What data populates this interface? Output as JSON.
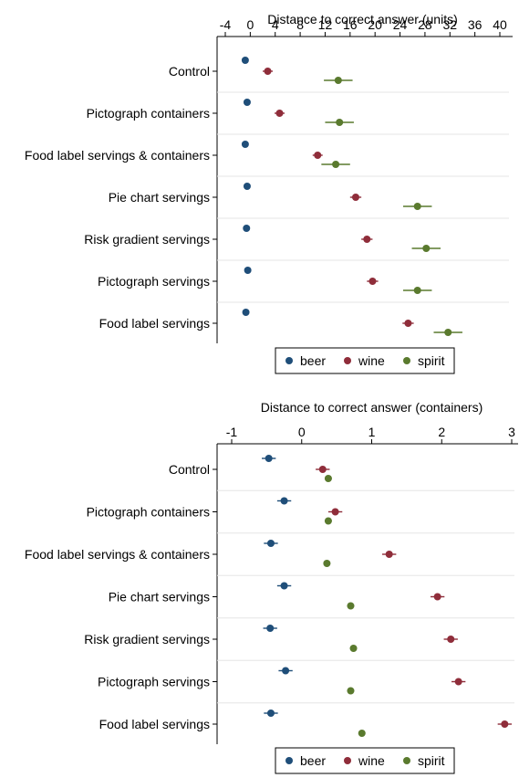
{
  "chart_data": [
    {
      "type": "scatter",
      "subtype": "dot-plot-with-error-bars",
      "xlabel": "Distance to correct answer (units)",
      "xlim": [
        -4,
        40
      ],
      "xticks": [
        -4,
        0,
        4,
        8,
        12,
        16,
        20,
        24,
        28,
        32,
        36,
        40
      ],
      "xtick_labels": [
        "-4",
        "0",
        "4",
        "8",
        "12",
        "16",
        "20",
        "24",
        "28",
        "32",
        "36",
        "40"
      ],
      "categories": [
        "Control",
        "Pictograph containers",
        "Food label servings & containers",
        "Pie chart servings",
        "Risk gradient servings",
        "Pictograph servings",
        "Food label servings"
      ],
      "series": [
        {
          "name": "beer",
          "color": "#1f4e79",
          "values": [
            -0.8,
            -0.5,
            -0.8,
            -0.5,
            -0.6,
            -0.4,
            -0.7
          ],
          "err": [
            0,
            0,
            0,
            0,
            0,
            0,
            0
          ]
        },
        {
          "name": "wine",
          "color": "#8f2d3a",
          "values": [
            2.8,
            4.7,
            10.8,
            16.9,
            18.7,
            19.6,
            25.3
          ],
          "err": [
            0.8,
            0.8,
            0.8,
            0.9,
            0.9,
            0.9,
            0.9
          ]
        },
        {
          "name": "spirit",
          "color": "#5a7a2e",
          "values": [
            14.1,
            14.3,
            13.7,
            26.8,
            28.2,
            26.8,
            31.7
          ],
          "err": [
            2.3,
            2.3,
            2.3,
            2.3,
            2.3,
            2.3,
            2.3
          ]
        }
      ],
      "legend": {
        "placement": "bottom",
        "items": [
          "beer",
          "wine",
          "spirit"
        ]
      },
      "grid": {
        "horizontal": true,
        "vertical": false
      }
    },
    {
      "type": "scatter",
      "subtype": "dot-plot-with-error-bars",
      "xlabel": "Distance to correct answer (containers)",
      "xlim": [
        -1,
        3
      ],
      "xticks": [
        -1,
        0,
        1,
        2,
        3
      ],
      "xtick_labels": [
        "-1",
        "0",
        "1",
        "2",
        "3"
      ],
      "categories": [
        "Control",
        "Pictograph containers",
        "Food label servings & containers",
        "Pie chart servings",
        "Risk gradient servings",
        "Pictograph servings",
        "Food label servings"
      ],
      "series": [
        {
          "name": "beer",
          "color": "#1f4e79",
          "values": [
            -0.47,
            -0.25,
            -0.44,
            -0.25,
            -0.45,
            -0.23,
            -0.44
          ],
          "err": [
            0.1,
            0.1,
            0.1,
            0.1,
            0.1,
            0.1,
            0.1
          ]
        },
        {
          "name": "wine",
          "color": "#8f2d3a",
          "values": [
            0.3,
            0.48,
            1.25,
            1.94,
            2.13,
            2.24,
            2.9
          ],
          "err": [
            0.1,
            0.1,
            0.1,
            0.1,
            0.1,
            0.1,
            0.1
          ]
        },
        {
          "name": "spirit",
          "color": "#5a7a2e",
          "values": [
            0.38,
            0.38,
            0.36,
            0.7,
            0.74,
            0.7,
            0.86
          ],
          "err": [
            0.05,
            0.05,
            0.05,
            0.05,
            0.05,
            0.05,
            0.05
          ]
        }
      ],
      "legend": {
        "placement": "bottom",
        "items": [
          "beer",
          "wine",
          "spirit"
        ]
      },
      "grid": {
        "horizontal": true,
        "vertical": false
      }
    }
  ]
}
